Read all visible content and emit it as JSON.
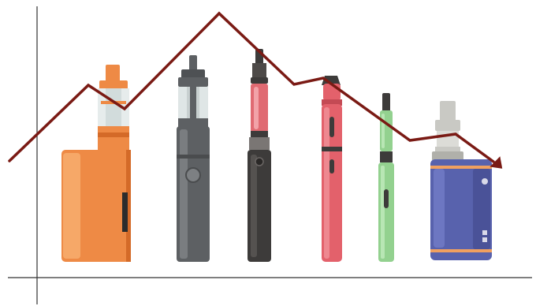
{
  "illustration": {
    "subject": "vape-devices-with-declining-trend-line",
    "colors": {
      "axis": "#333333",
      "trend_line": "#7a1a14",
      "box_mod_orange": "#ee8a45",
      "pen_gray": "#5d6063",
      "pen_dark": "#3d3b3a",
      "glass_pink": "#e06a72",
      "pen_red": "#e3616b",
      "pen_green": "#93d18f",
      "box_mod_blue": "#5862ad",
      "accent_orange": "#f0a060",
      "metal_silver": "#c9c9c4"
    },
    "devices": [
      {
        "icon": "orange-box-mod-icon"
      },
      {
        "icon": "gray-vape-pen-icon"
      },
      {
        "icon": "black-pink-tank-pen-icon"
      },
      {
        "icon": "red-vape-pen-icon"
      },
      {
        "icon": "green-slim-pen-icon"
      },
      {
        "icon": "blue-box-mod-icon"
      }
    ]
  }
}
